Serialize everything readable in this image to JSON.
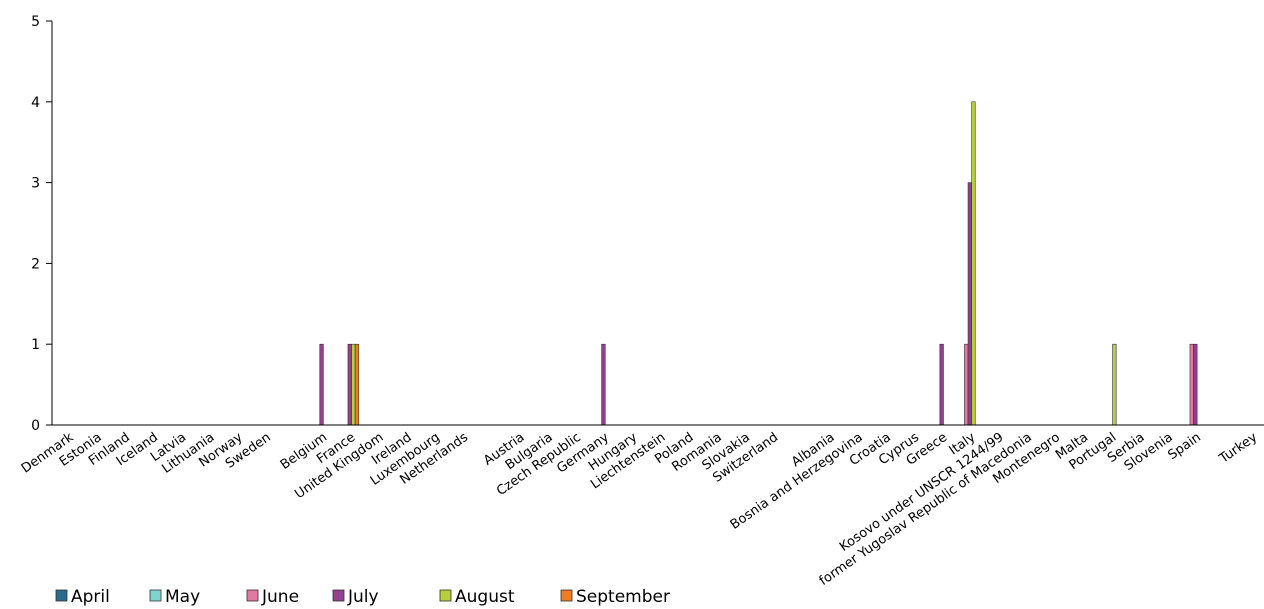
{
  "chart_data": {
    "type": "bar",
    "ylim": [
      0,
      5
    ],
    "yticks": [
      "0",
      "1",
      "2",
      "3",
      "4",
      "5"
    ],
    "legend_position": "bottom-left",
    "grid": false,
    "groups": [
      [
        "Denmark",
        "Estonia",
        "Finland",
        "Iceland",
        "Latvia",
        "Lithuania",
        "Norway",
        "Sweden"
      ],
      [
        "Belgium",
        "France",
        "United Kingdom",
        "Ireland",
        "Luxembourg",
        "Netherlands"
      ],
      [
        "Austria",
        "Bulgaria",
        "Czech Republic",
        "Germany",
        "Hungary",
        "Liechtenstein",
        "Poland",
        "Romania",
        "Slovakia",
        "Switzerland"
      ],
      [
        "Albania",
        "Bosnia and Herzegovina",
        "Croatia",
        "Cyprus",
        "Greece",
        "Italy",
        "Kosovo under UNSCR 1244/99",
        "former Yugoslav Republic of Macedonia",
        "Montenegro",
        "Malta",
        "Portugal",
        "Serbia",
        "Slovenia",
        "Spain"
      ],
      [
        "Turkey"
      ]
    ],
    "series": [
      {
        "name": "April",
        "color": "#2a6b8c",
        "values": [
          0,
          0,
          0,
          0,
          0,
          0,
          0,
          0,
          0,
          0,
          0,
          0,
          0,
          0,
          0,
          0,
          0,
          0,
          0,
          0,
          0,
          0,
          0,
          0,
          0,
          0,
          0,
          0,
          0,
          0,
          0,
          0,
          0,
          0,
          0,
          0,
          0,
          0,
          0
        ]
      },
      {
        "name": "May",
        "color": "#7fd4d0",
        "values": [
          0,
          0,
          0,
          0,
          0,
          0,
          0,
          0,
          0,
          0,
          0,
          0,
          0,
          0,
          0,
          0,
          0,
          0,
          0,
          0,
          0,
          0,
          0,
          0,
          0,
          0,
          0,
          0,
          0,
          0,
          0,
          0,
          0,
          0,
          0,
          0,
          0,
          0,
          0
        ]
      },
      {
        "name": "June",
        "color": "#e07aa0",
        "values": [
          0,
          0,
          0,
          0,
          0,
          0,
          0,
          0,
          0,
          0,
          0,
          0,
          0,
          0,
          0,
          0,
          0,
          0,
          0,
          0,
          0,
          0,
          0,
          0,
          0,
          0,
          0,
          0,
          0,
          1,
          0,
          0,
          0,
          0,
          0,
          0,
          0,
          1,
          0
        ]
      },
      {
        "name": "July",
        "color": "#93418e",
        "values": [
          0,
          0,
          0,
          0,
          0,
          0,
          0,
          0,
          1,
          1,
          0,
          0,
          0,
          0,
          0,
          0,
          0,
          1,
          0,
          0,
          0,
          0,
          0,
          0,
          0,
          0,
          0,
          0,
          1,
          3,
          0,
          0,
          0,
          0,
          0,
          0,
          0,
          1,
          0
        ]
      },
      {
        "name": "August",
        "color": "#b7cf3c",
        "values": [
          0,
          0,
          0,
          0,
          0,
          0,
          0,
          0,
          0,
          1,
          0,
          0,
          0,
          0,
          0,
          0,
          0,
          0,
          0,
          0,
          0,
          0,
          0,
          0,
          0,
          0,
          0,
          0,
          0,
          4,
          0,
          0,
          0,
          0,
          1,
          0,
          0,
          0,
          0
        ]
      },
      {
        "name": "September",
        "color": "#f07d23",
        "values": [
          0,
          0,
          0,
          0,
          0,
          0,
          0,
          0,
          0,
          1,
          0,
          0,
          0,
          0,
          0,
          0,
          0,
          0,
          0,
          0,
          0,
          0,
          0,
          0,
          0,
          0,
          0,
          0,
          0,
          0,
          0,
          0,
          0,
          0,
          0,
          0,
          0,
          0,
          0
        ]
      }
    ]
  }
}
